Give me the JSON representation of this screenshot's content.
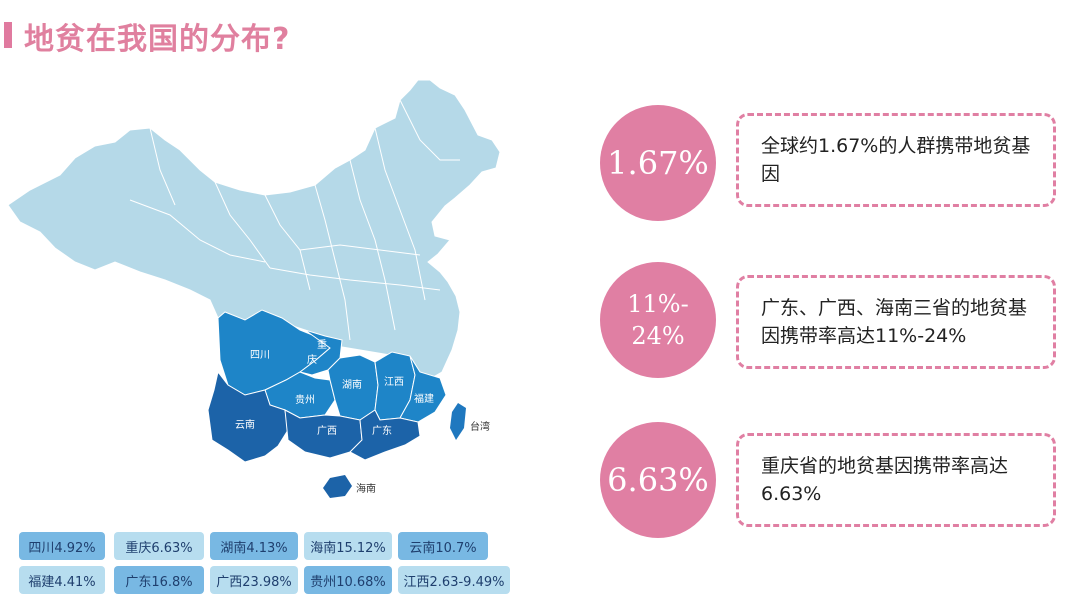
{
  "title": "地贫在我国的分布?",
  "map_labels": {
    "sichuan": "四川",
    "chongqing_1": "重",
    "chongqing_2": "庆",
    "hunan": "湖南",
    "jiangxi": "江西",
    "guizhou": "贵州",
    "fujian": "福建",
    "yunnan": "云南",
    "guangxi": "广西",
    "guangdong": "广东",
    "taiwan": "台湾",
    "hainan": "海南"
  },
  "stats": [
    {
      "value": "1.67%",
      "desc": "全球约1.67%的人群携带地贫基因"
    },
    {
      "value": "11%-24%",
      "value_line1": "11%-",
      "value_line2": "24%",
      "desc": "广东、广西、海南三省的地贫基因携带率高达11%-24%"
    },
    {
      "value": "6.63%",
      "desc": "重庆省的地贫基因携带率高达6.63%"
    }
  ],
  "tags_row1": [
    "四川4.92%",
    "重庆6.63%",
    "湖南4.13%",
    "海南15.12%",
    "云南10.7%"
  ],
  "tags_row2": [
    "福建4.41%",
    "广东16.8%",
    "广西23.98%",
    "贵州10.68%",
    "江西2.63-9.49%"
  ],
  "colors": {
    "title": "#e0809f",
    "circle": "#e07fa3",
    "map_base": "#b5d9e8",
    "map_medium": "#1e85c8",
    "map_dark": "#1c63a8",
    "taiwan": "#1f78bf",
    "tag_dark": "#78b8e3",
    "tag_light": "#b7ddef"
  }
}
